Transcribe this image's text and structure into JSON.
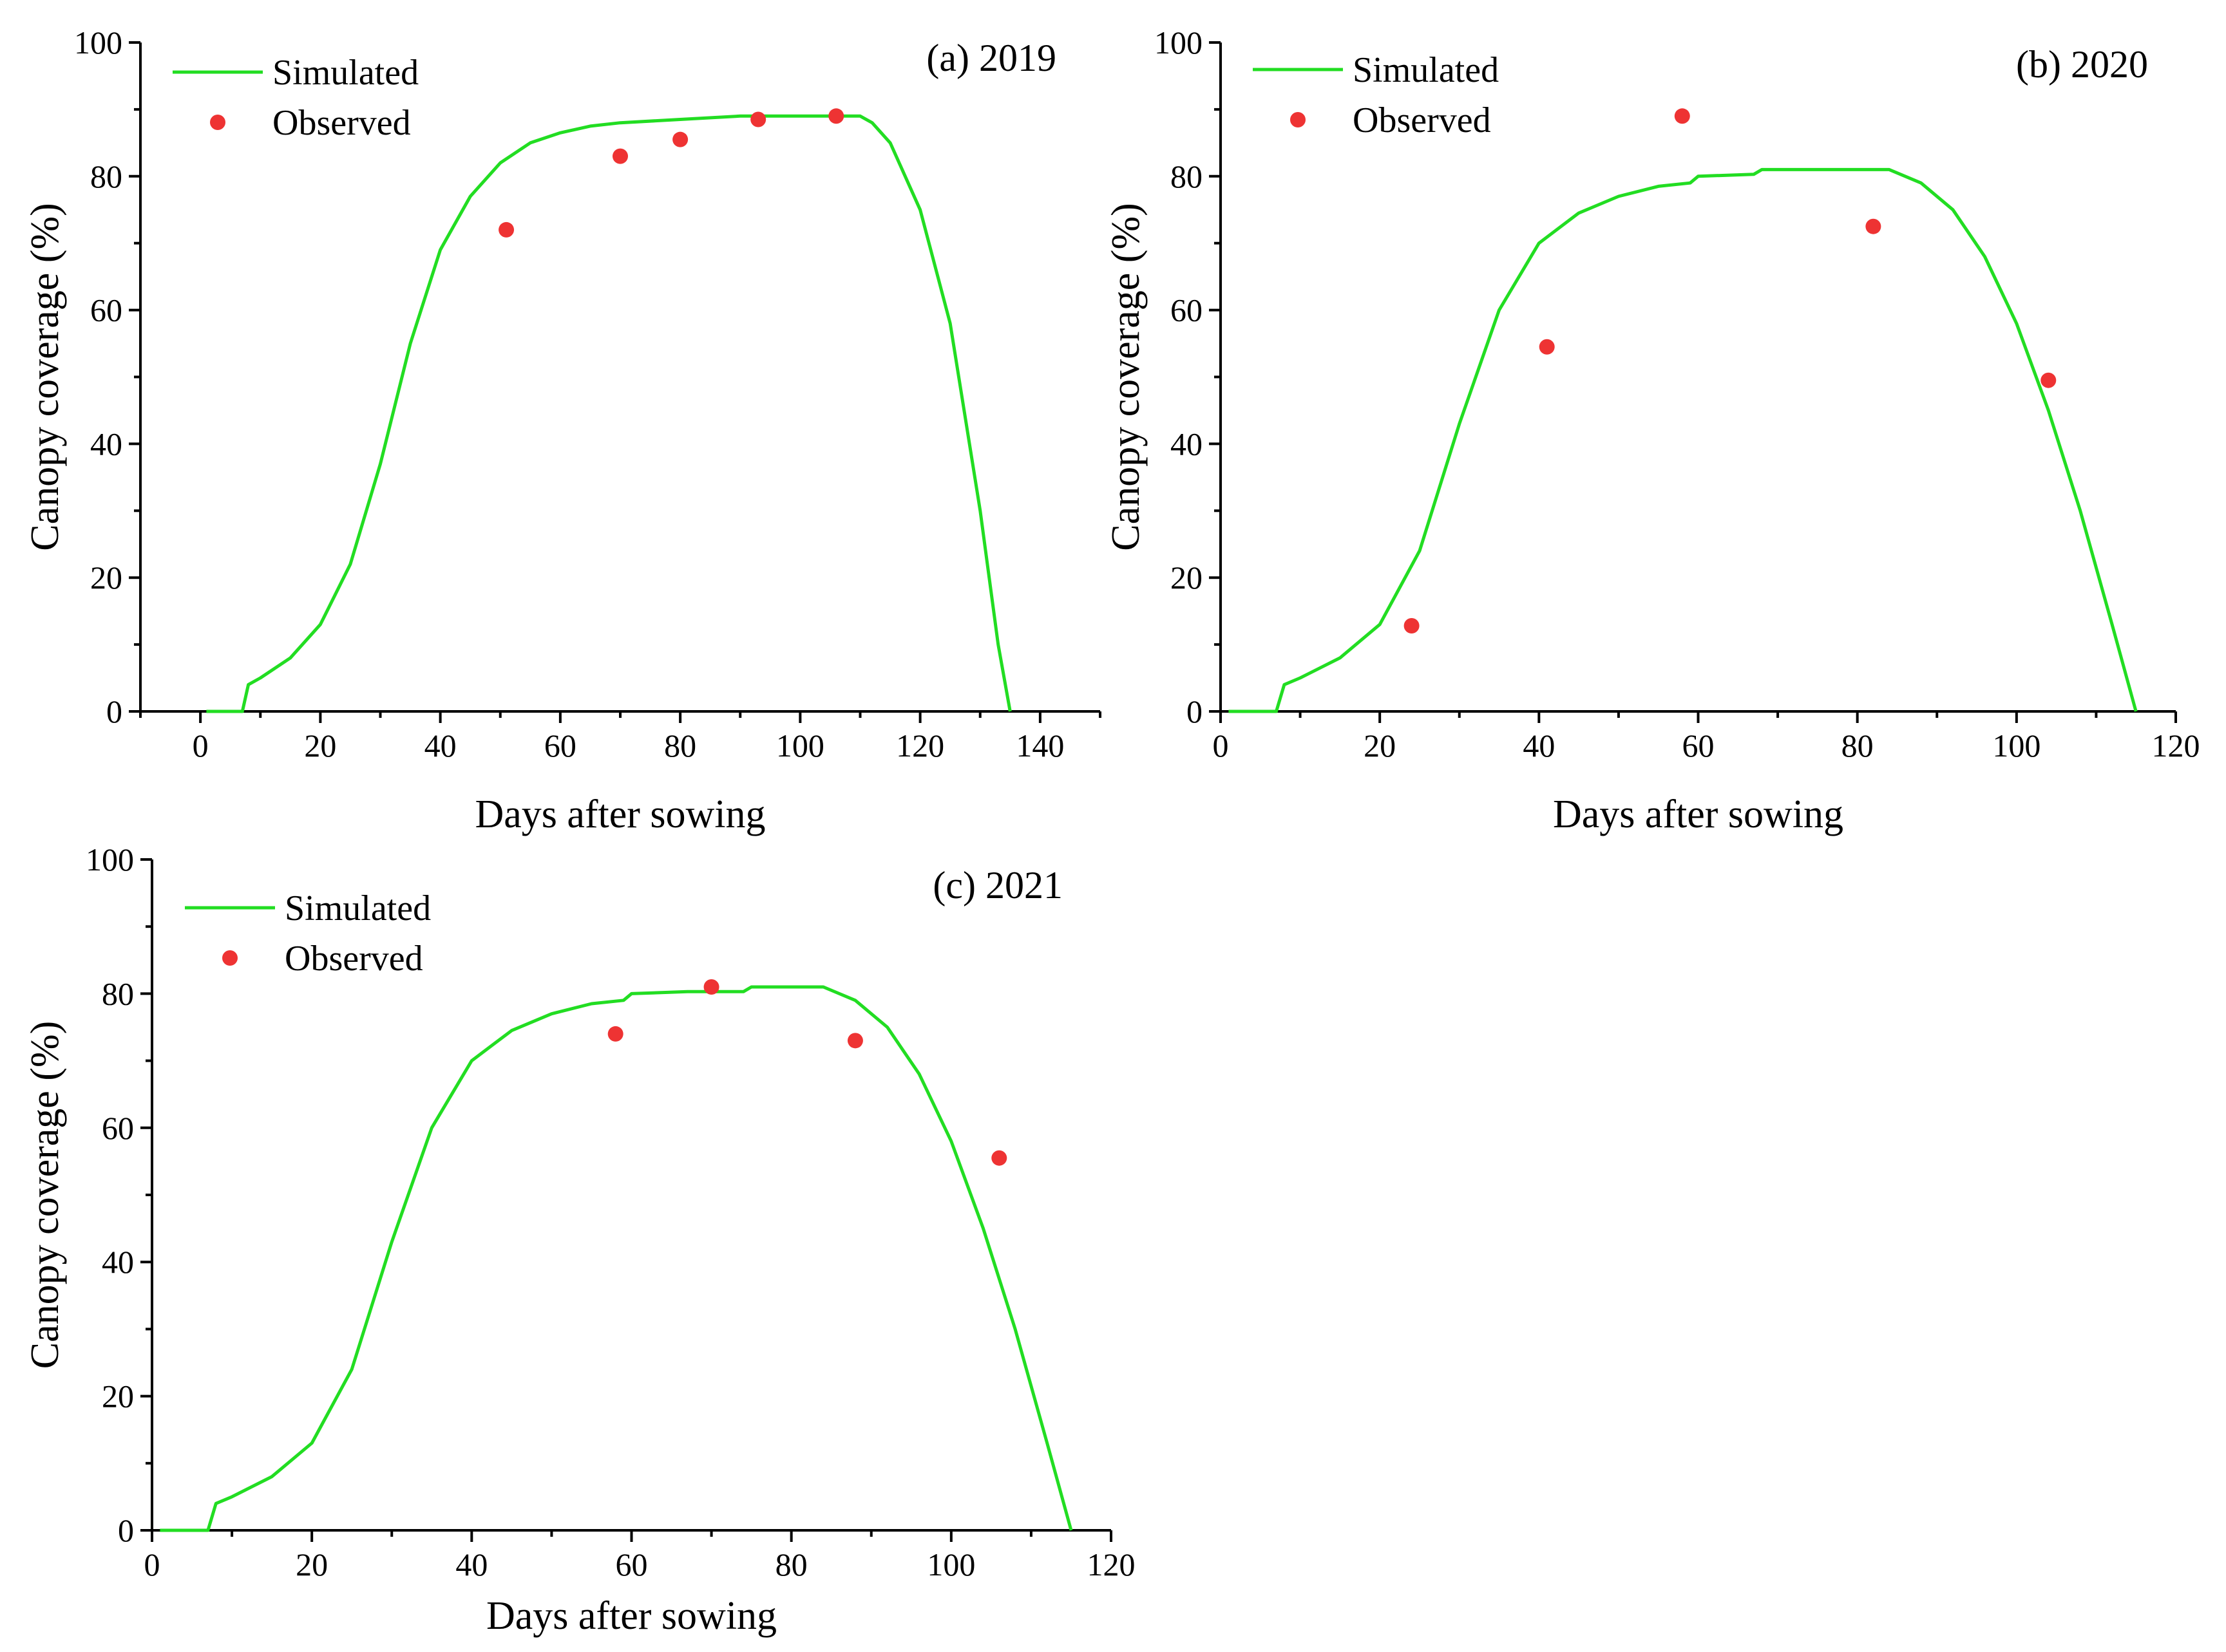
{
  "chart_data": [
    {
      "type": "line",
      "panel_label": "(a)  2019",
      "xlabel": "Days after sowing",
      "ylabel": "Canopy coverage (%)",
      "xlim": [
        -10,
        150
      ],
      "ylim": [
        0,
        100
      ],
      "xticks": [
        0,
        20,
        40,
        60,
        80,
        100,
        120,
        140
      ],
      "yticks": [
        0,
        20,
        40,
        60,
        80,
        100
      ],
      "legend": [
        "Simulated",
        "Observed"
      ],
      "legend_position": "top-left",
      "series": [
        {
          "name": "Simulated",
          "kind": "line",
          "color": "#22dd22",
          "x": [
            1,
            7,
            8,
            10,
            15,
            20,
            25,
            30,
            35,
            40,
            45,
            50,
            55,
            60,
            65,
            70,
            80,
            90,
            100,
            105,
            110,
            112,
            115,
            120,
            125,
            130,
            133,
            135
          ],
          "y": [
            0,
            0,
            4,
            5,
            8,
            13,
            22,
            37,
            55,
            69,
            77,
            82,
            85,
            86.5,
            87.5,
            88,
            88.5,
            89,
            89,
            89,
            89,
            88,
            85,
            75,
            58,
            30,
            10,
            0
          ]
        },
        {
          "name": "Observed",
          "kind": "scatter",
          "color": "#ee3333",
          "x": [
            51,
            70,
            80,
            93,
            106
          ],
          "y": [
            72,
            83,
            85.5,
            88.5,
            89
          ]
        }
      ]
    },
    {
      "type": "line",
      "panel_label": "(b)  2020",
      "xlabel": "Days after sowing",
      "ylabel": "Canopy coverage (%)",
      "xlim": [
        0,
        120
      ],
      "ylim": [
        0,
        100
      ],
      "xticks": [
        0,
        20,
        40,
        60,
        80,
        100,
        120
      ],
      "yticks": [
        0,
        20,
        40,
        60,
        80,
        100
      ],
      "legend": [
        "Simulated",
        "Observed"
      ],
      "legend_position": "top-left",
      "series": [
        {
          "name": "Simulated",
          "kind": "line",
          "color": "#22dd22",
          "x": [
            1,
            7,
            8,
            10,
            15,
            20,
            25,
            30,
            35,
            40,
            45,
            50,
            55,
            59,
            60,
            67,
            68,
            75,
            80,
            84,
            88,
            92,
            96,
            100,
            104,
            108,
            112,
            115
          ],
          "y": [
            0,
            0,
            4,
            5,
            8,
            13,
            24,
            43,
            60,
            70,
            74.5,
            77,
            78.5,
            79,
            80,
            80.3,
            81,
            81,
            81,
            81,
            79,
            75,
            68,
            58,
            45,
            30,
            13,
            0
          ]
        },
        {
          "name": "Observed",
          "kind": "scatter",
          "color": "#ee3333",
          "x": [
            24,
            41,
            58,
            82,
            104
          ],
          "y": [
            12.8,
            54.5,
            89,
            72.5,
            49.5
          ]
        }
      ]
    },
    {
      "type": "line",
      "panel_label": "(c)  2021",
      "xlabel": "Days after sowing",
      "ylabel": "Canopy coverage (%)",
      "xlim": [
        0,
        120
      ],
      "ylim": [
        0,
        100
      ],
      "xticks": [
        0,
        20,
        40,
        60,
        80,
        100,
        120
      ],
      "yticks": [
        0,
        20,
        40,
        60,
        80,
        100
      ],
      "legend": [
        "Simulated",
        "Observed"
      ],
      "legend_position": "top-left",
      "series": [
        {
          "name": "Simulated",
          "kind": "line",
          "color": "#22dd22",
          "x": [
            1,
            7,
            8,
            10,
            15,
            20,
            25,
            30,
            35,
            40,
            45,
            50,
            55,
            59,
            60,
            67,
            74,
            75,
            80,
            84,
            88,
            92,
            96,
            100,
            104,
            108,
            112,
            115
          ],
          "y": [
            0,
            0,
            4,
            5,
            8,
            13,
            24,
            43,
            60,
            70,
            74.5,
            77,
            78.5,
            79,
            80,
            80.3,
            80.3,
            81,
            81,
            81,
            79,
            75,
            68,
            58,
            45,
            30,
            13,
            0
          ]
        },
        {
          "name": "Observed",
          "kind": "scatter",
          "color": "#ee3333",
          "x": [
            58,
            70,
            88,
            106
          ],
          "y": [
            74,
            81,
            73,
            55.5
          ]
        }
      ]
    }
  ]
}
